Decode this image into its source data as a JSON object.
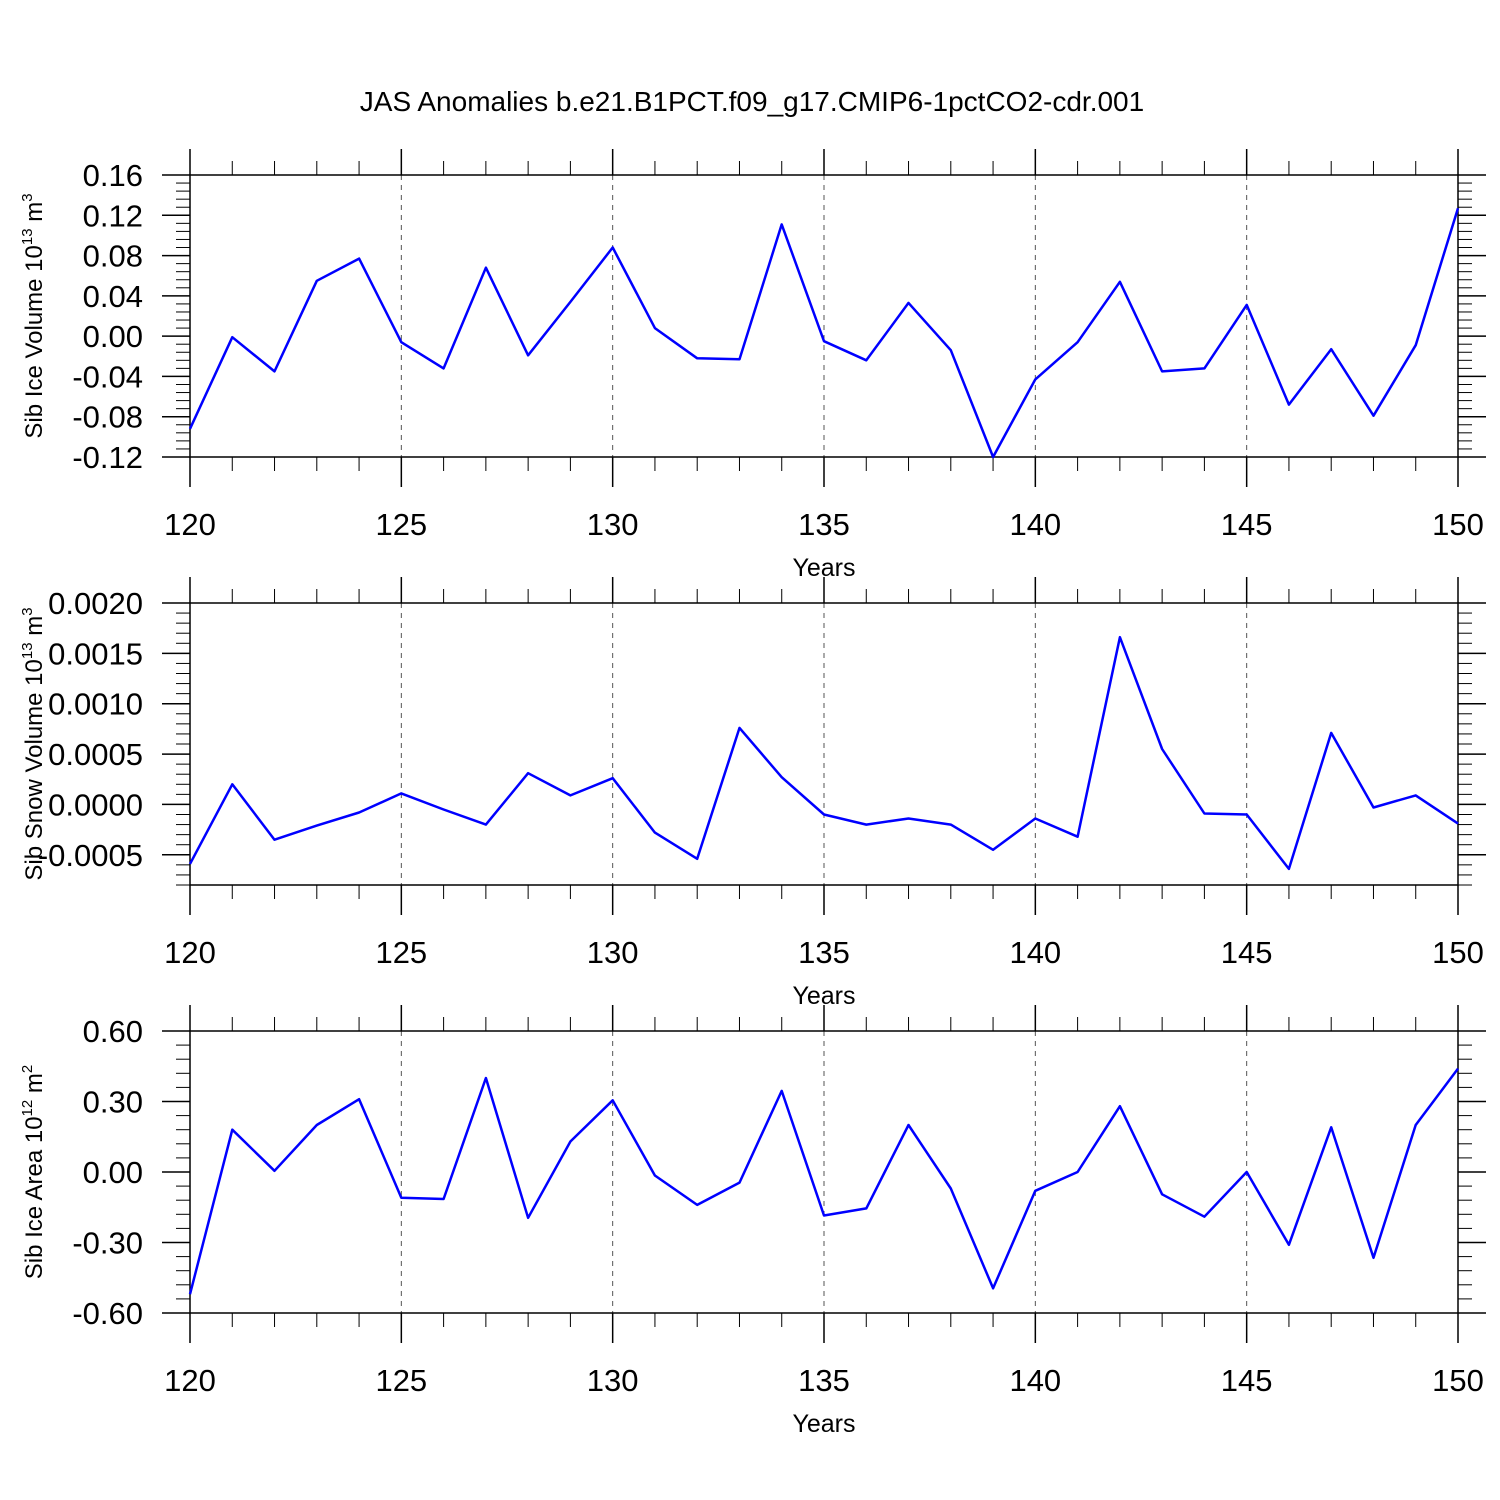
{
  "chart_data": [
    {
      "type": "line",
      "title": "JAS Anomalies b.e21.B1PCT.f09_g17.CMIP6-1pctCO2-cdr.001",
      "xlabel": "Years",
      "ylabel": "Sib Ice Volume 10",
      "ylabel_exp": "13",
      "ylabel_unit": " m",
      "ylabel_unit_exp": "3",
      "xlim": [
        120,
        150
      ],
      "ylim": [
        -0.12,
        0.16
      ],
      "xticks": [
        120,
        125,
        130,
        135,
        140,
        145,
        150
      ],
      "yticks": [
        -0.12,
        -0.08,
        -0.04,
        0.0,
        0.04,
        0.08,
        0.12,
        0.16
      ],
      "ytick_labels": [
        "-0.12",
        "-0.08",
        "-0.04",
        "0.00",
        "0.04",
        "0.08",
        "0.12",
        "0.16"
      ],
      "grid": "vertical dashed at major x ticks",
      "line_color": "#0000ff",
      "x": [
        120,
        121,
        122,
        123,
        124,
        125,
        126,
        127,
        128,
        129,
        130,
        131,
        132,
        133,
        134,
        135,
        136,
        137,
        138,
        139,
        140,
        141,
        142,
        143,
        144,
        145,
        146,
        147,
        148,
        149,
        150
      ],
      "values": [
        -0.092,
        -0.001,
        -0.035,
        0.055,
        0.077,
        -0.006,
        -0.032,
        0.068,
        -0.019,
        0.034,
        0.088,
        0.008,
        -0.022,
        -0.023,
        0.111,
        -0.005,
        -0.024,
        0.033,
        -0.014,
        -0.12,
        -0.043,
        -0.006,
        0.054,
        -0.035,
        -0.032,
        0.031,
        -0.068,
        -0.013,
        -0.079,
        -0.009,
        0.127
      ]
    },
    {
      "type": "line",
      "xlabel": "Years",
      "ylabel": "Sib Snow Volume 10",
      "ylabel_exp": "13",
      "ylabel_unit": " m",
      "ylabel_unit_exp": "3",
      "xlim": [
        120,
        150
      ],
      "ylim": [
        -0.0008,
        0.002
      ],
      "xticks": [
        120,
        125,
        130,
        135,
        140,
        145,
        150
      ],
      "yticks": [
        -0.0005,
        0.0,
        0.0005,
        0.001,
        0.0015,
        0.002
      ],
      "ytick_labels": [
        "-0.0005",
        "0.0000",
        "0.0005",
        "0.0010",
        "0.0015",
        "0.0020"
      ],
      "grid": "vertical dashed at major x ticks",
      "line_color": "#0000ff",
      "x": [
        120,
        121,
        122,
        123,
        124,
        125,
        126,
        127,
        128,
        129,
        130,
        131,
        132,
        133,
        134,
        135,
        136,
        137,
        138,
        139,
        140,
        141,
        142,
        143,
        144,
        145,
        146,
        147,
        148,
        149,
        150
      ],
      "values": [
        -0.00059,
        0.0002,
        -0.00035,
        -0.00021,
        -8e-05,
        0.00011,
        -5e-05,
        -0.0002,
        0.00031,
        9e-05,
        0.00026,
        -0.00028,
        -0.00054,
        0.00076,
        0.00027,
        -0.0001,
        -0.0002,
        -0.00014,
        -0.0002,
        -0.00045,
        -0.00014,
        -0.00032,
        0.00166,
        0.00055,
        -9e-05,
        -0.0001,
        -0.00064,
        0.00071,
        -3e-05,
        9e-05,
        -0.00019
      ]
    },
    {
      "type": "line",
      "xlabel": "Years",
      "ylabel": "Sib Ice Area 10",
      "ylabel_exp": "12",
      "ylabel_unit": " m",
      "ylabel_unit_exp": "2",
      "xlim": [
        120,
        150
      ],
      "ylim": [
        -0.6,
        0.6
      ],
      "xticks": [
        120,
        125,
        130,
        135,
        140,
        145,
        150
      ],
      "yticks": [
        -0.6,
        -0.3,
        0.0,
        0.3,
        0.6
      ],
      "ytick_labels": [
        "-0.60",
        "-0.30",
        "0.00",
        "0.30",
        "0.60"
      ],
      "grid": "vertical dashed at major x ticks",
      "line_color": "#0000ff",
      "x": [
        120,
        121,
        122,
        123,
        124,
        125,
        126,
        127,
        128,
        129,
        130,
        131,
        132,
        133,
        134,
        135,
        136,
        137,
        138,
        139,
        140,
        141,
        142,
        143,
        144,
        145,
        146,
        147,
        148,
        149,
        150
      ],
      "values": [
        -0.52,
        0.18,
        0.005,
        0.2,
        0.31,
        -0.11,
        -0.115,
        0.4,
        -0.195,
        0.13,
        0.305,
        -0.015,
        -0.14,
        -0.045,
        0.345,
        -0.185,
        -0.155,
        0.2,
        -0.07,
        -0.495,
        -0.08,
        0.0,
        0.28,
        -0.095,
        -0.19,
        0.0,
        -0.31,
        0.19,
        -0.365,
        0.2,
        0.44
      ]
    }
  ]
}
